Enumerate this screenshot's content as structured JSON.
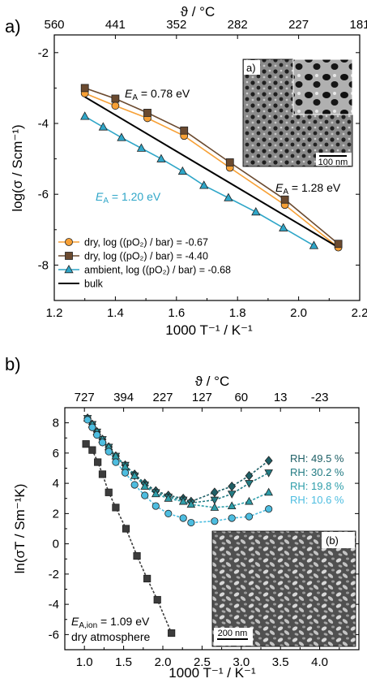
{
  "colors": {
    "orange": "#F7A035",
    "brown": "#6B4A2F",
    "cyan": "#2FA6C8",
    "black": "#000000",
    "grey": "#3C3C3C",
    "rh495": "#1E5F66",
    "rh302": "#227B83",
    "rh198": "#2E9EAA",
    "rh106": "#4DBDE0"
  },
  "chart_data": [
    {
      "type": "line",
      "panel_label": "a)",
      "xlabel": "1000 T⁻¹ / K⁻¹",
      "ylabel": "log(σ / Scm⁻¹)",
      "top_axis_label": "ϑ / °C",
      "xlim": [
        1.2,
        2.2
      ],
      "ylim": [
        -9,
        -1.5
      ],
      "x_ticks": [
        1.2,
        1.4,
        1.6,
        1.8,
        2.0,
        2.2
      ],
      "x_tick_labels": [
        "1.2",
        "1.4",
        "1.6",
        "1.8",
        "2.0",
        "2.2"
      ],
      "y_ticks": [
        -8,
        -6,
        -4,
        -2
      ],
      "y_tick_labels": [
        "-8",
        "-6",
        "-4",
        "-2"
      ],
      "top_ticks": [
        {
          "x": 1.2,
          "label": "560"
        },
        {
          "x": 1.4,
          "label": "441"
        },
        {
          "x": 1.6,
          "label": "352"
        },
        {
          "x": 1.8,
          "label": "282"
        },
        {
          "x": 2.0,
          "label": "227"
        },
        {
          "x": 2.2,
          "label": "181"
        }
      ],
      "series": [
        {
          "name": "dry, log ((pO₂) / bar) = -0.67",
          "marker": "circle",
          "color": "#F7A035",
          "x": [
            1.3,
            1.4,
            1.505,
            1.625,
            1.775,
            1.955,
            2.13
          ],
          "y": [
            -3.15,
            -3.5,
            -3.85,
            -4.35,
            -5.25,
            -6.3,
            -7.5
          ]
        },
        {
          "name": "dry, log ((pO₂) / bar) = -4.40",
          "marker": "square",
          "color": "#6B4A2F",
          "x": [
            1.3,
            1.4,
            1.505,
            1.625,
            1.775,
            1.955,
            2.13
          ],
          "y": [
            -3.0,
            -3.3,
            -3.7,
            -4.2,
            -5.1,
            -6.15,
            -7.4
          ]
        },
        {
          "name": "ambient, log ((pO₂) / bar) = -0.68",
          "marker": "triangle",
          "color": "#2FA6C8",
          "x": [
            1.3,
            1.36,
            1.42,
            1.485,
            1.55,
            1.62,
            1.69,
            1.77,
            1.86,
            1.95,
            2.05
          ],
          "y": [
            -3.8,
            -4.1,
            -4.4,
            -4.7,
            -5.0,
            -5.35,
            -5.75,
            -6.1,
            -6.5,
            -6.95,
            -7.45
          ]
        },
        {
          "name": "bulk",
          "marker": "none",
          "color": "#000000",
          "x": [
            1.3,
            2.13
          ],
          "y": [
            -3.25,
            -7.5
          ]
        }
      ],
      "annotations": [
        {
          "text": "E",
          "sub": "A",
          "rest": " = 0.78 eV",
          "color": "#000000"
        },
        {
          "text": "E",
          "sub": "A",
          "rest": " = 1.28 eV",
          "color": "#000000"
        },
        {
          "text": "E",
          "sub": "A",
          "rest": " = 1.20 eV",
          "color": "#2FA6C8"
        }
      ],
      "inset": {
        "label": "a)",
        "scale_bar": "100 nm"
      }
    },
    {
      "type": "line",
      "panel_label": "b)",
      "xlabel": "1000 T⁻¹ / K⁻¹",
      "ylabel": "ln(σT / Sm⁻¹K)",
      "top_axis_label": "ϑ / °C",
      "xlim": [
        0.75,
        4.5
      ],
      "ylim": [
        -7,
        9
      ],
      "x_ticks": [
        1.0,
        1.5,
        2.0,
        2.5,
        3.0,
        3.5,
        4.0
      ],
      "x_tick_labels": [
        "1.0",
        "1.5",
        "2.0",
        "2.5",
        "3.0",
        "3.5",
        "4.0"
      ],
      "y_ticks": [
        -6,
        -4,
        -2,
        0,
        2,
        4,
        6,
        8
      ],
      "y_tick_labels": [
        "-6",
        "-4",
        "-2",
        "0",
        "2",
        "4",
        "6",
        "8"
      ],
      "top_ticks": [
        {
          "x": 1.0,
          "label": "727"
        },
        {
          "x": 1.5,
          "label": "394"
        },
        {
          "x": 2.0,
          "label": "227"
        },
        {
          "x": 2.5,
          "label": "127"
        },
        {
          "x": 3.0,
          "label": "60"
        },
        {
          "x": 3.5,
          "label": "13"
        },
        {
          "x": 4.0,
          "label": "-23"
        }
      ],
      "series": [
        {
          "name": "RH: 49.5 %",
          "marker": "diamond",
          "color": "#1E5F66",
          "x": [
            1.04,
            1.1,
            1.16,
            1.23,
            1.31,
            1.4,
            1.52,
            1.64,
            1.77,
            1.91,
            2.07,
            2.26,
            2.36,
            2.66,
            2.88,
            3.1,
            3.35
          ],
          "y": [
            8.3,
            7.9,
            7.4,
            6.9,
            6.4,
            5.8,
            5.2,
            4.6,
            4.0,
            3.5,
            3.2,
            3.0,
            2.8,
            3.4,
            3.8,
            4.5,
            5.5
          ]
        },
        {
          "name": "RH: 30.2 %",
          "marker": "triangle-down",
          "color": "#227B83",
          "x": [
            1.04,
            1.1,
            1.16,
            1.23,
            1.31,
            1.4,
            1.52,
            1.64,
            1.77,
            1.91,
            2.07,
            2.26,
            2.36,
            2.66,
            2.88,
            3.1,
            3.35
          ],
          "y": [
            8.3,
            7.9,
            7.4,
            6.9,
            6.4,
            5.8,
            5.2,
            4.5,
            3.9,
            3.4,
            3.1,
            2.9,
            2.7,
            2.9,
            3.3,
            4.0,
            4.7
          ]
        },
        {
          "name": "RH: 19.8 %",
          "marker": "triangle",
          "color": "#2E9EAA",
          "x": [
            1.04,
            1.1,
            1.16,
            1.23,
            1.31,
            1.4,
            1.52,
            1.64,
            1.77,
            1.91,
            2.07,
            2.26,
            2.36,
            2.66,
            2.88,
            3.1,
            3.35
          ],
          "y": [
            8.3,
            7.9,
            7.4,
            6.9,
            6.4,
            5.8,
            5.1,
            4.5,
            3.8,
            3.3,
            3.0,
            2.8,
            2.6,
            2.4,
            2.5,
            2.8,
            3.4
          ]
        },
        {
          "name": "RH: 10.6 %",
          "marker": "circle",
          "color": "#4DBDE0",
          "x": [
            1.04,
            1.1,
            1.16,
            1.23,
            1.31,
            1.4,
            1.52,
            1.64,
            1.77,
            1.91,
            2.07,
            2.26,
            2.36,
            2.66,
            2.88,
            3.1,
            3.35
          ],
          "y": [
            8.2,
            7.7,
            7.2,
            6.7,
            6.1,
            5.4,
            4.7,
            3.9,
            3.2,
            2.5,
            2.0,
            1.7,
            1.4,
            1.5,
            1.7,
            1.8,
            2.3
          ]
        },
        {
          "name": "dry atmosphere",
          "marker": "square",
          "color": "#3C3C3C",
          "x": [
            1.02,
            1.1,
            1.17,
            1.23,
            1.31,
            1.4,
            1.53,
            1.67,
            1.8,
            1.93,
            2.11
          ],
          "y": [
            6.6,
            6.2,
            5.4,
            4.6,
            3.4,
            2.4,
            1.0,
            -0.8,
            -2.3,
            -3.7,
            -5.9
          ]
        }
      ],
      "rh_labels": [
        "RH: 49.5 %",
        "RH: 30.2 %",
        "RH: 19.8 %",
        "RH: 10.6 %"
      ],
      "annotations": [
        {
          "text": "E",
          "sub": "A,ion",
          "rest": " = 1.09 eV",
          "color": "#000000"
        },
        {
          "text": "dry atmosphere",
          "color": "#000000"
        }
      ],
      "inset": {
        "label": "(b)",
        "scale_bar": "200 nm"
      }
    }
  ]
}
